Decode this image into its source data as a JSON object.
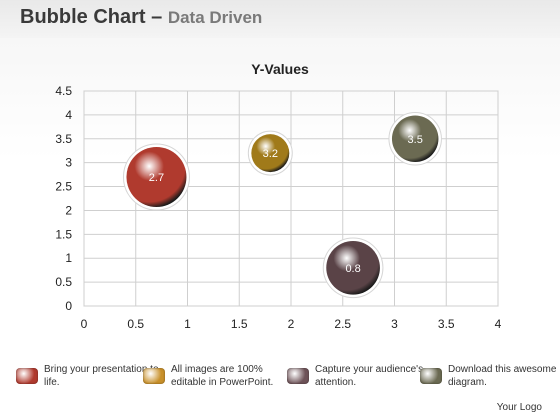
{
  "page": {
    "title_main": "Bubble Chart",
    "title_dash": " – ",
    "title_sub": "Data Driven",
    "footer": "Your Logo"
  },
  "chart_data": {
    "type": "scatter",
    "title": "Y-Values",
    "xlabel": "",
    "ylabel": "",
    "xlim": [
      0,
      4
    ],
    "ylim": [
      0,
      4.5
    ],
    "x_ticks": [
      "0",
      "0.5",
      "1",
      "1.5",
      "2",
      "2.5",
      "3",
      "3.5",
      "4"
    ],
    "y_ticks": [
      "0",
      "0.5",
      "1",
      "1.5",
      "2",
      "2.5",
      "3",
      "3.5",
      "4",
      "4.5"
    ],
    "grid": true,
    "points": [
      {
        "x": 0.7,
        "y": 2.7,
        "label": "2.7",
        "size": 3,
        "color": "#b03a2e"
      },
      {
        "x": 1.8,
        "y": 3.2,
        "label": "3.2",
        "size": 1.2,
        "color": "#a07a1a"
      },
      {
        "x": 2.6,
        "y": 0.8,
        "label": "0.8",
        "size": 2.4,
        "color": "#5a4347"
      },
      {
        "x": 3.2,
        "y": 3.5,
        "label": "3.5",
        "size": 1.8,
        "color": "#6b6a52"
      }
    ]
  },
  "legend": [
    {
      "text": "Bring your presentation to life.",
      "color": "#b03a2e"
    },
    {
      "text": "All images are 100% editable in PowerPoint.",
      "color": "#c8902a"
    },
    {
      "text": "Capture your audience's attention.",
      "color": "#6e5358"
    },
    {
      "text": "Download this awesome diagram.",
      "color": "#6b6a52"
    }
  ]
}
